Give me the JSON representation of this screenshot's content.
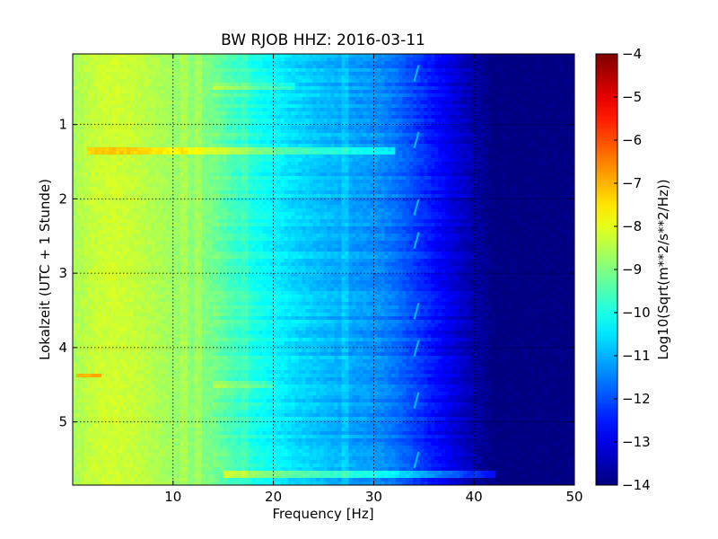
{
  "chart_data": {
    "type": "heatmap",
    "title": "BW RJOB HHZ: 2016-03-11",
    "xlabel": "Frequency [Hz]",
    "ylabel": "Lokalzeit (UTC + 1 Stunde)",
    "xlim": [
      0,
      50
    ],
    "ylim": [
      5.85,
      0.05
    ],
    "y_inverted": true,
    "x_ticks": [
      10,
      20,
      30,
      40,
      50
    ],
    "x_tick_labels": [
      "10",
      "20",
      "30",
      "40",
      "50"
    ],
    "y_ticks": [
      1,
      2,
      3,
      4,
      5
    ],
    "y_tick_labels": [
      "1",
      "2",
      "3",
      "4",
      "5"
    ],
    "grid": true,
    "colormap": "jet",
    "colorbar": {
      "label": "Log10(Sqrt(m**2/s**2/Hz))",
      "range": [
        -14,
        -4
      ],
      "ticks": [
        -4,
        -5,
        -6,
        -7,
        -8,
        -9,
        -10,
        -11,
        -12,
        -13,
        -14
      ],
      "tick_labels": [
        "−4",
        "−5",
        "−6",
        "−7",
        "−8",
        "−9",
        "−10",
        "−11",
        "−12",
        "−13",
        "−14"
      ]
    },
    "spectrum_profile": {
      "frequency_hz": [
        0,
        2,
        4,
        6,
        8,
        10,
        12,
        14,
        16,
        18,
        20,
        22,
        24,
        26,
        28,
        30,
        32,
        34,
        36,
        38,
        40,
        42,
        45,
        50
      ],
      "log10_amplitude": [
        -8.6,
        -8.3,
        -8.2,
        -8.3,
        -8.5,
        -8.7,
        -8.9,
        -9.1,
        -9.6,
        -10.0,
        -10.3,
        -10.6,
        -10.8,
        -11.0,
        -11.2,
        -11.3,
        -11.6,
        -12.1,
        -12.6,
        -13.1,
        -13.6,
        -14.0,
        -14.0,
        -14.0
      ]
    },
    "horizontal_features": [
      {
        "time": 1.35,
        "f_start": 1.5,
        "f_end": 32,
        "delta": 1.0
      },
      {
        "time": 0.47,
        "f_start": 14,
        "f_end": 22,
        "delta": 0.6
      },
      {
        "time": 4.38,
        "f_start": 0.3,
        "f_end": 3,
        "delta": 1.4
      },
      {
        "time": 4.5,
        "f_start": 14,
        "f_end": 20,
        "delta": 0.5
      },
      {
        "time": 5.7,
        "f_start": 15,
        "f_end": 42,
        "delta": 1.3
      }
    ],
    "vertical_features": [
      {
        "frequency": 11.0,
        "delta": 0.25
      },
      {
        "frequency": 12.5,
        "delta": 0.3
      },
      {
        "frequency": 17.0,
        "delta": 0.2
      },
      {
        "frequency": 27.0,
        "delta": 0.3
      }
    ],
    "tonal_events": {
      "frequency": 34.3,
      "times": [
        0.3,
        1.2,
        2.1,
        2.55,
        3.5,
        4.0,
        4.7,
        5.5
      ]
    }
  }
}
